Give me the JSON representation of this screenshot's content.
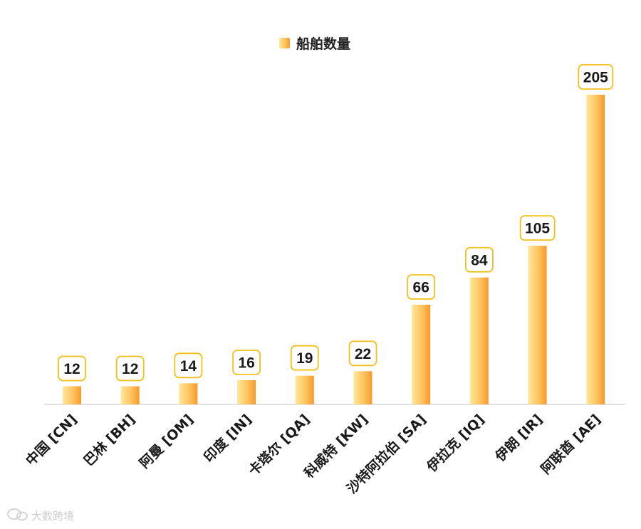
{
  "chart_data": {
    "type": "bar",
    "categories": [
      "中国 [CN]",
      "巴林 [BH]",
      "阿曼 [OM]",
      "印度 [IN]",
      "卡塔尔 [QA]",
      "科威特 [KW]",
      "沙特阿拉伯 [SA]",
      "伊拉克 [IQ]",
      "伊朗 [IR]",
      "阿联酋 [AE]"
    ],
    "series": [
      {
        "name": "船舶数量",
        "values": [
          12,
          12,
          14,
          16,
          19,
          22,
          66,
          84,
          105,
          205
        ]
      }
    ],
    "ylim": [
      0,
      205
    ],
    "grid": false,
    "legend_position": "top-center",
    "data_labels": true
  },
  "colors": {
    "bar_light": "#ffe79a",
    "bar_mid": "#ffc35e",
    "bar_dark": "#f59a2c",
    "label_border": "#f2c01c",
    "axis": "#d9d9d9"
  },
  "watermark": {
    "icon": "chat-bubble-icon",
    "text": "大数跨境"
  }
}
